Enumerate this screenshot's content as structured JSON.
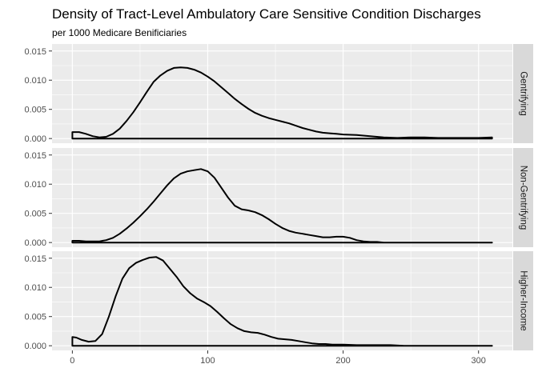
{
  "chart_data": {
    "type": "area",
    "title": "Density of Tract-Level Ambulatory Care Sensitive Condition Discharges",
    "subtitle": "per 1000 Medicare Benificiaries",
    "xlabel": "",
    "ylabel": "",
    "xlim": [
      -15,
      325
    ],
    "ylim": [
      -0.0008,
      0.0162
    ],
    "x_ticks": [
      0,
      100,
      200,
      300
    ],
    "x_tick_labels": [
      "0",
      "100",
      "200",
      "300"
    ],
    "y_ticks": [
      0,
      0.005,
      0.01,
      0.015
    ],
    "y_tick_labels": [
      "0.000",
      "0.005",
      "0.010",
      "0.015"
    ],
    "grid": true,
    "legend": "none",
    "facet": "rows",
    "colors": {
      "panel_bg": "#ebebeb",
      "grid": "#ffffff",
      "strip_bg": "#d9d9d9",
      "line": "#000000"
    },
    "panels": [
      {
        "label": "Gentrifying",
        "points": [
          [
            0,
            0.0011
          ],
          [
            5,
            0.0011
          ],
          [
            10,
            0.0008
          ],
          [
            15,
            0.0004
          ],
          [
            20,
            0.0002
          ],
          [
            25,
            0.0003
          ],
          [
            30,
            0.0008
          ],
          [
            35,
            0.0017
          ],
          [
            40,
            0.003
          ],
          [
            45,
            0.0045
          ],
          [
            50,
            0.0062
          ],
          [
            55,
            0.008
          ],
          [
            60,
            0.0097
          ],
          [
            65,
            0.0108
          ],
          [
            70,
            0.0116
          ],
          [
            75,
            0.0121
          ],
          [
            80,
            0.0122
          ],
          [
            85,
            0.0121
          ],
          [
            90,
            0.0118
          ],
          [
            95,
            0.0113
          ],
          [
            100,
            0.0106
          ],
          [
            105,
            0.0098
          ],
          [
            110,
            0.0088
          ],
          [
            115,
            0.0078
          ],
          [
            120,
            0.0068
          ],
          [
            125,
            0.0059
          ],
          [
            130,
            0.0051
          ],
          [
            135,
            0.0044
          ],
          [
            140,
            0.0039
          ],
          [
            145,
            0.0035
          ],
          [
            150,
            0.0032
          ],
          [
            155,
            0.0029
          ],
          [
            160,
            0.0026
          ],
          [
            165,
            0.0022
          ],
          [
            170,
            0.0018
          ],
          [
            175,
            0.0015
          ],
          [
            180,
            0.0012
          ],
          [
            185,
            0.001
          ],
          [
            190,
            0.0009
          ],
          [
            195,
            0.0008
          ],
          [
            200,
            0.0007
          ],
          [
            210,
            0.0006
          ],
          [
            220,
            0.0004
          ],
          [
            230,
            0.0002
          ],
          [
            240,
            0.0001
          ],
          [
            250,
            0.0002
          ],
          [
            260,
            0.0002
          ],
          [
            270,
            0.0001
          ],
          [
            280,
            0.0001
          ],
          [
            290,
            0.0001
          ],
          [
            300,
            0.0001
          ],
          [
            310,
            0.0002
          ]
        ]
      },
      {
        "label": "Non-Gentrifying",
        "points": [
          [
            0,
            0.0003
          ],
          [
            5,
            0.0003
          ],
          [
            10,
            0.0002
          ],
          [
            15,
            0.0002
          ],
          [
            20,
            0.0002
          ],
          [
            25,
            0.0004
          ],
          [
            30,
            0.0008
          ],
          [
            35,
            0.0015
          ],
          [
            40,
            0.0024
          ],
          [
            45,
            0.0034
          ],
          [
            50,
            0.0045
          ],
          [
            55,
            0.0057
          ],
          [
            60,
            0.007
          ],
          [
            65,
            0.0084
          ],
          [
            70,
            0.0098
          ],
          [
            75,
            0.011
          ],
          [
            80,
            0.0118
          ],
          [
            85,
            0.0122
          ],
          [
            90,
            0.0124
          ],
          [
            95,
            0.0126
          ],
          [
            100,
            0.0122
          ],
          [
            105,
            0.0111
          ],
          [
            110,
            0.0094
          ],
          [
            115,
            0.0077
          ],
          [
            120,
            0.0063
          ],
          [
            125,
            0.0057
          ],
          [
            130,
            0.0055
          ],
          [
            135,
            0.0052
          ],
          [
            140,
            0.0047
          ],
          [
            145,
            0.004
          ],
          [
            150,
            0.0032
          ],
          [
            155,
            0.0025
          ],
          [
            160,
            0.002
          ],
          [
            165,
            0.0017
          ],
          [
            170,
            0.0015
          ],
          [
            175,
            0.0013
          ],
          [
            180,
            0.0011
          ],
          [
            185,
            0.0009
          ],
          [
            190,
            0.0009
          ],
          [
            195,
            0.001
          ],
          [
            200,
            0.001
          ],
          [
            205,
            0.0008
          ],
          [
            210,
            0.0004
          ],
          [
            215,
            0.0002
          ],
          [
            220,
            0.0001
          ],
          [
            225,
            0.0001
          ],
          [
            230,
            0.0
          ],
          [
            240,
            0.0
          ],
          [
            310,
            0.0
          ]
        ]
      },
      {
        "label": "Higher-Income",
        "points": [
          [
            0,
            0.0015
          ],
          [
            3,
            0.0014
          ],
          [
            7,
            0.001
          ],
          [
            12,
            0.0007
          ],
          [
            17,
            0.0008
          ],
          [
            22,
            0.002
          ],
          [
            27,
            0.005
          ],
          [
            32,
            0.0085
          ],
          [
            37,
            0.0115
          ],
          [
            42,
            0.0133
          ],
          [
            47,
            0.0142
          ],
          [
            52,
            0.0147
          ],
          [
            57,
            0.0151
          ],
          [
            62,
            0.0152
          ],
          [
            67,
            0.0146
          ],
          [
            72,
            0.0132
          ],
          [
            77,
            0.0118
          ],
          [
            82,
            0.0102
          ],
          [
            87,
            0.009
          ],
          [
            92,
            0.0081
          ],
          [
            97,
            0.0075
          ],
          [
            102,
            0.0068
          ],
          [
            107,
            0.0058
          ],
          [
            112,
            0.0047
          ],
          [
            117,
            0.0037
          ],
          [
            122,
            0.003
          ],
          [
            127,
            0.0025
          ],
          [
            132,
            0.0023
          ],
          [
            137,
            0.0022
          ],
          [
            142,
            0.0019
          ],
          [
            147,
            0.0015
          ],
          [
            152,
            0.0012
          ],
          [
            157,
            0.0011
          ],
          [
            162,
            0.001
          ],
          [
            167,
            0.0008
          ],
          [
            172,
            0.0006
          ],
          [
            177,
            0.0004
          ],
          [
            182,
            0.0003
          ],
          [
            187,
            0.0003
          ],
          [
            192,
            0.0002
          ],
          [
            200,
            0.0002
          ],
          [
            210,
            0.0001
          ],
          [
            220,
            0.0001
          ],
          [
            235,
            0.0001
          ],
          [
            245,
            0.0
          ],
          [
            310,
            0.0
          ]
        ]
      }
    ]
  }
}
